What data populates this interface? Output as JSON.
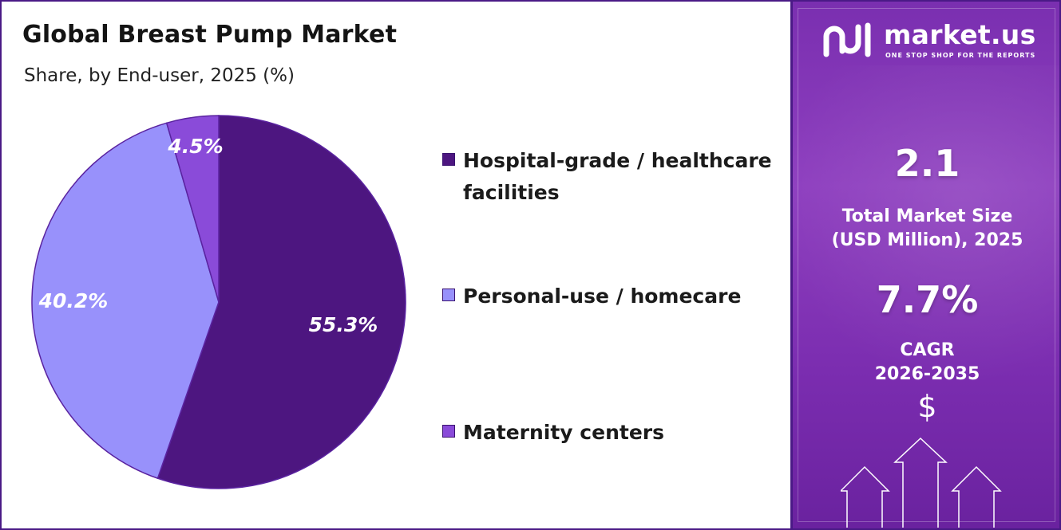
{
  "title": "Global Breast Pump Market",
  "subtitle": "Share, by End-user, 2025 (%)",
  "chart_data": {
    "type": "pie",
    "categories": [
      "Hospital-grade / healthcare facilities",
      "Personal-use / homecare",
      "Maternity centers"
    ],
    "values": [
      55.3,
      40.2,
      4.5
    ],
    "labels": [
      "55.3%",
      "40.2%",
      "4.5%"
    ],
    "colors": [
      "#4d1680",
      "#9891fb",
      "#8a4bd9"
    ],
    "legend_position": "right"
  },
  "legend": [
    {
      "label": "Hospital-grade / healthcare facilities",
      "color": "#4d1680"
    },
    {
      "label": "Personal-use / homecare",
      "color": "#9891fb"
    },
    {
      "label": "Maternity centers",
      "color": "#8a4bd9"
    }
  ],
  "sidebar": {
    "brand": "market.us",
    "tagline": "ONE STOP SHOP FOR THE REPORTS",
    "market_size_value": "2.1",
    "market_size_label_1": "Total Market Size",
    "market_size_label_2": "(USD Million), 2025",
    "cagr_value": "7.7%",
    "cagr_label_1": "CAGR",
    "cagr_label_2": "2026-2035",
    "currency_symbol": "$"
  }
}
